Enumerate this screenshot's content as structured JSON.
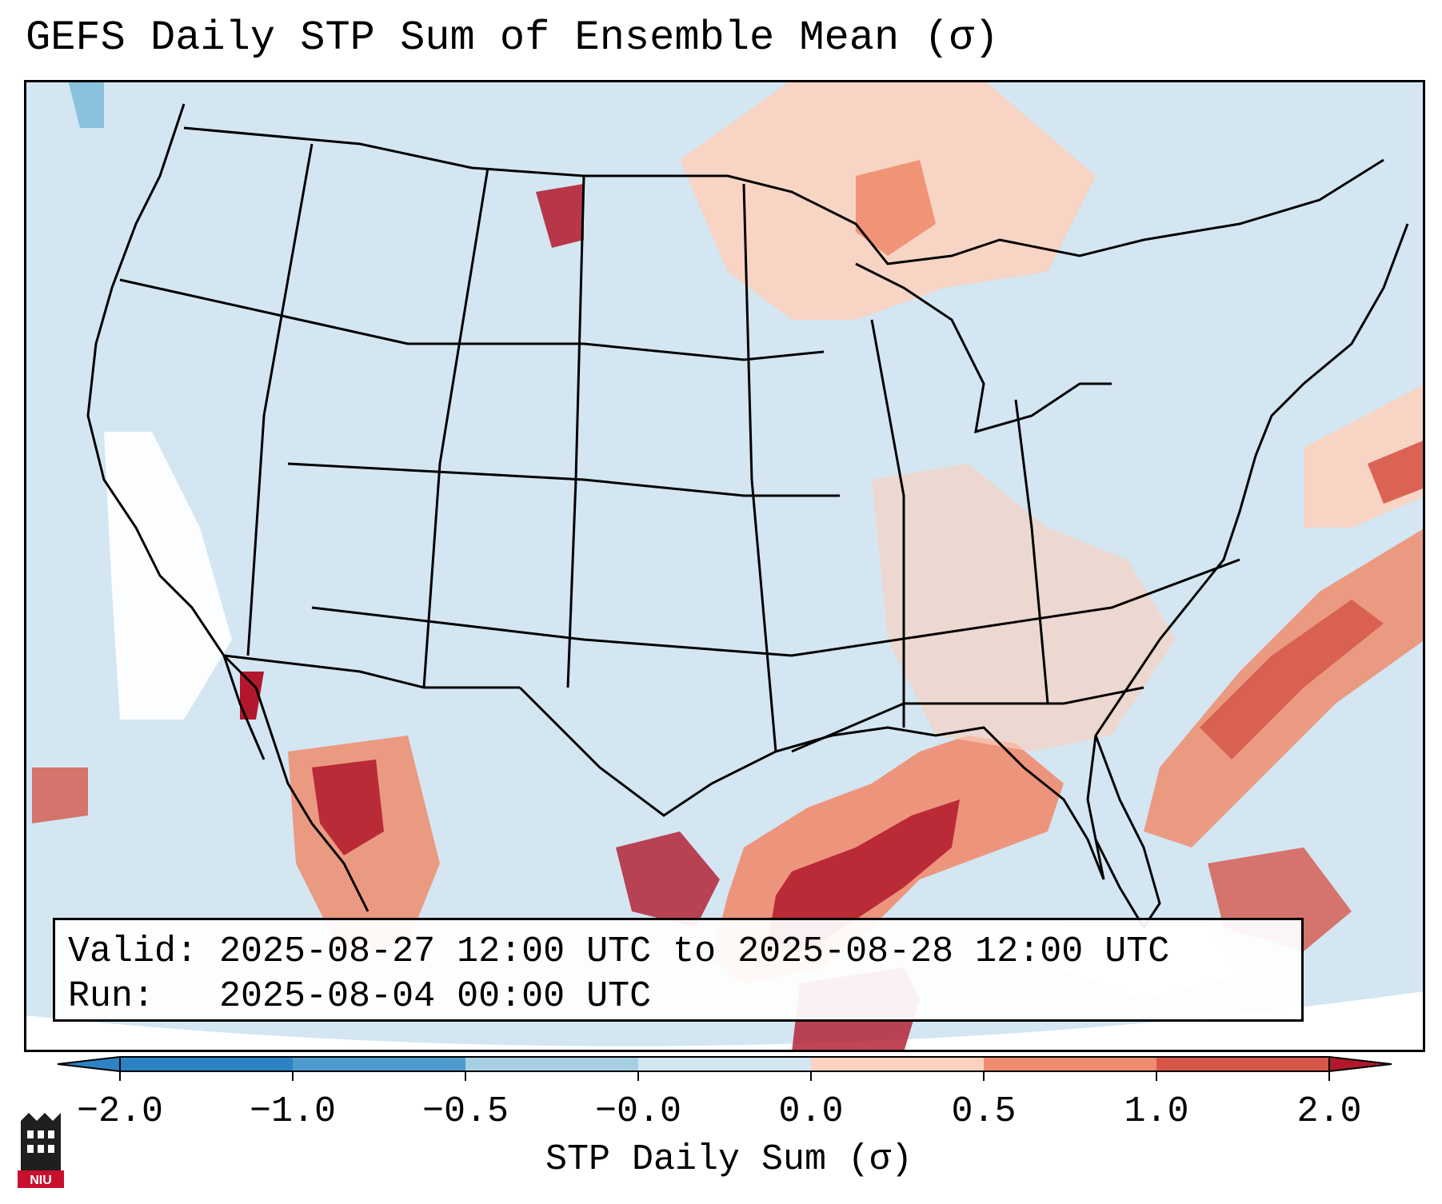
{
  "title": "GEFS Daily STP Sum of Ensemble Mean (σ)",
  "info": {
    "valid": "Valid: 2025-08-27 12:00 UTC to 2025-08-28 12:00 UTC",
    "run": "Run:   2025-08-04 00:00 UTC"
  },
  "colorbar": {
    "label": "STP Daily Sum (σ)",
    "ticks": [
      "−2.0",
      "−1.0",
      "−0.5",
      "−0.0",
      "0.0",
      "0.5",
      "1.0",
      "2.0"
    ],
    "colors": [
      "#2b83c5",
      "#4f9bce",
      "#a6cfe4",
      "#d3e6f2",
      "#ffffff",
      "#fbd1bf",
      "#ef8c6f",
      "#d6574a",
      "#b2182b"
    ]
  },
  "map": {
    "ocean_color": "#d3e6f2",
    "land_color": "#d3e6f2",
    "states_line": "#000000"
  },
  "logo": {
    "text": "NIU"
  }
}
